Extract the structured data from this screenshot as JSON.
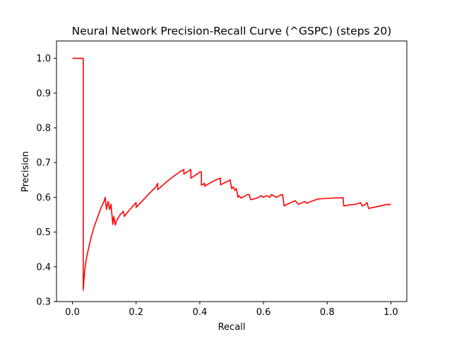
{
  "chart_data": {
    "type": "line",
    "title": "Neural Network Precision-Recall Curve (^GSPC) (steps 20)",
    "xlabel": "Recall",
    "ylabel": "Precision",
    "xlim": [
      -0.05,
      1.05
    ],
    "ylim": [
      0.3,
      1.05
    ],
    "xticks": [
      0.0,
      0.2,
      0.4,
      0.6,
      0.8,
      1.0
    ],
    "xtick_labels": [
      "0.0",
      "0.2",
      "0.4",
      "0.6",
      "0.8",
      "1.0"
    ],
    "yticks": [
      0.3,
      0.4,
      0.5,
      0.6,
      0.7,
      0.8,
      0.9,
      1.0
    ],
    "ytick_labels": [
      "0.3",
      "0.4",
      "0.5",
      "0.6",
      "0.7",
      "0.8",
      "0.9",
      "1.0"
    ],
    "grid": false,
    "line_color": "#ff0000",
    "series": [
      {
        "x": [
          0.0,
          0.034,
          0.034,
          0.036,
          0.04,
          0.045,
          0.05,
          0.055,
          0.06,
          0.07,
          0.08,
          0.09,
          0.1,
          0.103,
          0.107,
          0.112,
          0.117,
          0.121,
          0.127,
          0.13,
          0.135,
          0.138,
          0.15,
          0.16,
          0.163,
          0.18,
          0.2,
          0.2,
          0.22,
          0.24,
          0.26,
          0.268,
          0.268,
          0.28,
          0.3,
          0.32,
          0.34,
          0.35,
          0.35,
          0.372,
          0.372,
          0.38,
          0.39,
          0.4,
          0.405,
          0.405,
          0.415,
          0.415,
          0.43,
          0.45,
          0.465,
          0.465,
          0.48,
          0.495,
          0.5,
          0.505,
          0.51,
          0.515,
          0.52,
          0.522,
          0.53,
          0.54,
          0.55,
          0.555,
          0.56,
          0.58,
          0.59,
          0.592,
          0.6,
          0.61,
          0.62,
          0.625,
          0.64,
          0.65,
          0.66,
          0.665,
          0.67,
          0.68,
          0.69,
          0.7,
          0.71,
          0.72,
          0.73,
          0.735,
          0.75,
          0.77,
          0.8,
          0.82,
          0.85,
          0.852,
          0.87,
          0.89,
          0.905,
          0.91,
          0.92,
          0.925,
          0.93,
          0.95,
          0.97,
          0.99,
          0.992,
          1.0
        ],
        "y": [
          1.0,
          1.0,
          0.333,
          0.36,
          0.4,
          0.43,
          0.45,
          0.47,
          0.49,
          0.52,
          0.545,
          0.57,
          0.59,
          0.6,
          0.565,
          0.588,
          0.565,
          0.58,
          0.522,
          0.545,
          0.52,
          0.532,
          0.55,
          0.56,
          0.545,
          0.565,
          0.585,
          0.571,
          0.59,
          0.61,
          0.628,
          0.64,
          0.622,
          0.632,
          0.648,
          0.662,
          0.675,
          0.68,
          0.667,
          0.68,
          0.655,
          0.66,
          0.666,
          0.673,
          0.673,
          0.635,
          0.64,
          0.632,
          0.64,
          0.65,
          0.655,
          0.636,
          0.643,
          0.65,
          0.625,
          0.63,
          0.62,
          0.625,
          0.6,
          0.605,
          0.598,
          0.603,
          0.608,
          0.608,
          0.593,
          0.598,
          0.603,
          0.605,
          0.6,
          0.605,
          0.6,
          0.608,
          0.6,
          0.605,
          0.608,
          0.575,
          0.578,
          0.582,
          0.587,
          0.59,
          0.58,
          0.584,
          0.588,
          0.583,
          0.588,
          0.595,
          0.597,
          0.598,
          0.599,
          0.575,
          0.578,
          0.58,
          0.585,
          0.575,
          0.58,
          0.585,
          0.568,
          0.572,
          0.576,
          0.58,
          0.578,
          0.581
        ]
      }
    ]
  }
}
